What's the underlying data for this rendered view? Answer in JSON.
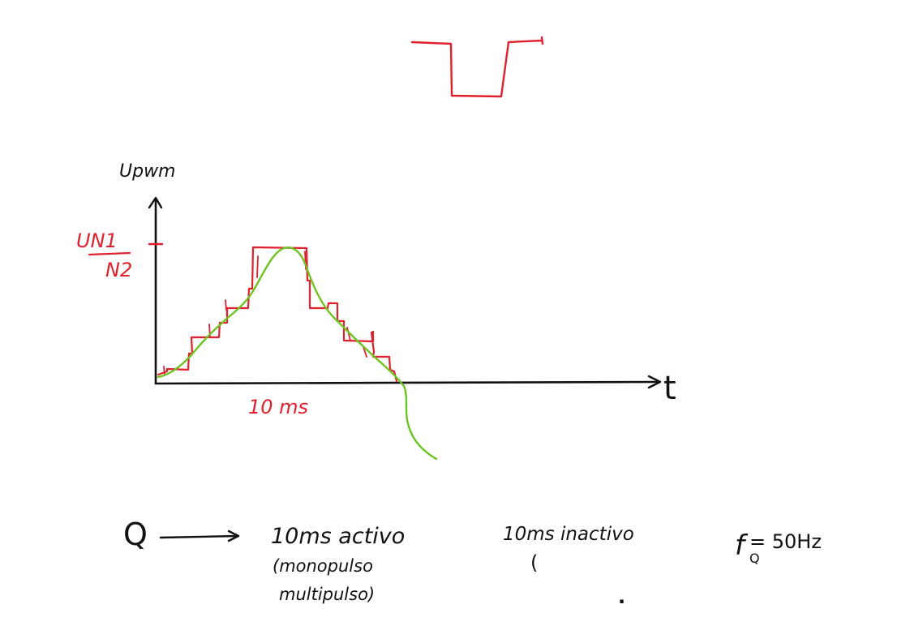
{
  "colors": {
    "ink": "#111111",
    "red": "#e0202c",
    "green": "#6cc322"
  },
  "labels": {
    "y_axis": "Upwm",
    "x_axis": "t",
    "y_ratio_top": "UN1",
    "y_ratio_bottom": "N2",
    "time_mark": "10 ms"
  },
  "notes": {
    "q_symbol": "Q",
    "active_line1": "10ms activo",
    "active_line2": "(monopulso",
    "active_line3": "multipulso)",
    "inactive_line1": "10ms inactivo",
    "inactive_line2": "(",
    "freq_prefix": "f",
    "freq_sub": "Q",
    "freq_value": "= 50Hz",
    "dot": "."
  }
}
